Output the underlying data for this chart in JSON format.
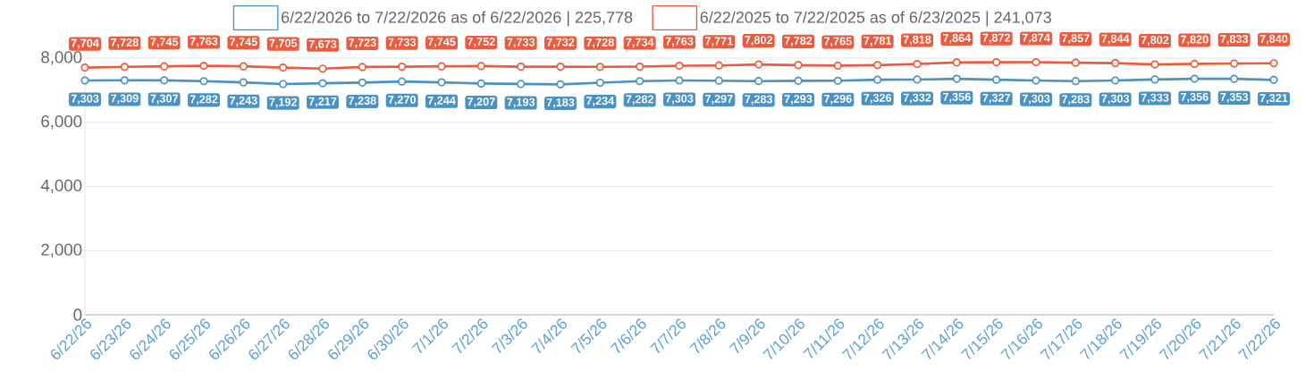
{
  "chart_data": {
    "type": "line",
    "categories": [
      "6/22/26",
      "6/23/26",
      "6/24/26",
      "6/25/26",
      "6/26/26",
      "6/27/26",
      "6/28/26",
      "6/29/26",
      "6/30/26",
      "7/1/26",
      "7/2/26",
      "7/3/26",
      "7/4/26",
      "7/5/26",
      "7/6/26",
      "7/7/26",
      "7/8/26",
      "7/9/26",
      "7/10/26",
      "7/11/26",
      "7/12/26",
      "7/13/26",
      "7/14/26",
      "7/15/26",
      "7/16/26",
      "7/17/26",
      "7/18/26",
      "7/19/26",
      "7/20/26",
      "7/21/26",
      "7/22/26"
    ],
    "series": [
      {
        "name": "6/22/2026 to 7/22/2026 as of 6/22/2026 | 225,778",
        "color": "#4a92c6",
        "values": [
          7303,
          7309,
          7307,
          7282,
          7243,
          7192,
          7217,
          7238,
          7270,
          7244,
          7207,
          7193,
          7183,
          7234,
          7282,
          7303,
          7297,
          7283,
          7293,
          7296,
          7326,
          7332,
          7356,
          7327,
          7303,
          7283,
          7303,
          7333,
          7356,
          7353,
          7321
        ],
        "value_labels": [
          "7,303",
          "7,309",
          "7,307",
          "7,282",
          "7,243",
          "7,192",
          "7,217",
          "7,238",
          "7,270",
          "7,244",
          "7,207",
          "7,193",
          "7,183",
          "7,234",
          "7,282",
          "7,303",
          "7,297",
          "7,283",
          "7,293",
          "7,296",
          "7,326",
          "7,332",
          "7,356",
          "7,327",
          "7,303",
          "7,283",
          "7,303",
          "7,333",
          "7,356",
          "7,353",
          "7,321"
        ]
      },
      {
        "name": "6/22/2025 to 7/22/2025 as of 6/23/2025 | 241,073",
        "color": "#ec5b3d",
        "values": [
          7704,
          7728,
          7745,
          7763,
          7745,
          7705,
          7673,
          7723,
          7733,
          7745,
          7752,
          7733,
          7732,
          7728,
          7734,
          7763,
          7771,
          7802,
          7782,
          7765,
          7781,
          7818,
          7864,
          7872,
          7874,
          7857,
          7844,
          7802,
          7820,
          7833,
          7840
        ],
        "value_labels": [
          "7,704",
          "7,728",
          "7,745",
          "7,763",
          "7,745",
          "7,705",
          "7,673",
          "7,723",
          "7,733",
          "7,745",
          "7,752",
          "7,733",
          "7,732",
          "7,728",
          "7,734",
          "7,763",
          "7,771",
          "7,802",
          "7,782",
          "7,765",
          "7,781",
          "7,818",
          "7,864",
          "7,872",
          "7,874",
          "7,857",
          "7,844",
          "7,802",
          "7,820",
          "7,833",
          "7,840"
        ]
      }
    ],
    "ylim": [
      0,
      8000
    ],
    "yticks": [
      0,
      {
        "value": 2000,
        "label": "2,000"
      },
      {
        "value": 4000,
        "label": "4,000"
      },
      {
        "value": 6000,
        "label": "6,000"
      },
      {
        "value": 8000,
        "label": "8,000"
      }
    ],
    "grid": "y",
    "legend": "top",
    "marker": "circle",
    "line_style": "solid"
  }
}
